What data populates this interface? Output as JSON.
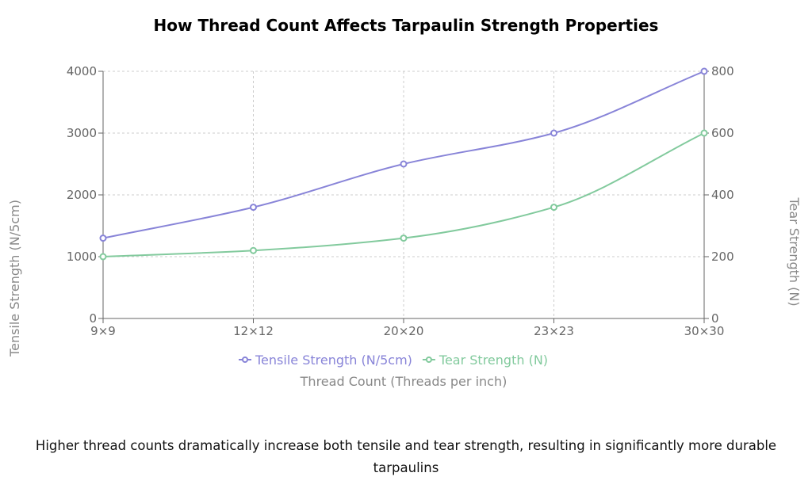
{
  "chart_data": {
    "type": "line",
    "title": "How Thread Count Affects Tarpaulin Strength Properties",
    "categories": [
      "9×9",
      "12×12",
      "20×20",
      "23×23",
      "30×30"
    ],
    "xlabel": "Thread Count (Threads per inch)",
    "ylabel_left": "Tensile Strength (N/5cm)",
    "ylabel_right": "Tear Strength (N)",
    "ylim_left": [
      0,
      4000
    ],
    "yticks_left": [
      0,
      1000,
      2000,
      3000,
      4000
    ],
    "ylim_right": [
      0,
      800
    ],
    "yticks_right": [
      0,
      200,
      400,
      600,
      800
    ],
    "grid": true,
    "legend_position": "bottom",
    "series": [
      {
        "name": "Tensile Strength (N/5cm)",
        "axis": "left",
        "color": "#8884d8",
        "values": [
          1300,
          1800,
          2500,
          3000,
          4000
        ]
      },
      {
        "name": "Tear Strength (N)",
        "axis": "right",
        "color": "#82ca9d",
        "values": [
          200,
          220,
          260,
          360,
          600
        ]
      }
    ]
  },
  "caption": "Higher thread counts dramatically increase both tensile and tear strength, resulting in significantly more durable tarpaulins"
}
